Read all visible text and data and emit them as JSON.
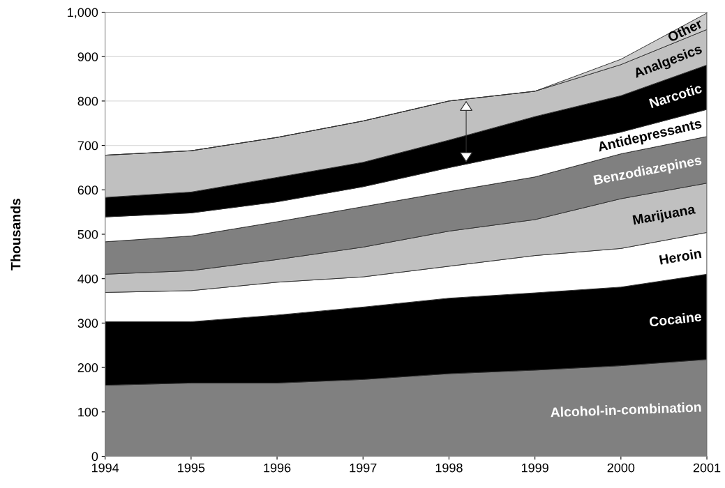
{
  "chart_data": {
    "type": "area",
    "stacked": true,
    "ylabel": "Thousands",
    "x": [
      "1994",
      "1995",
      "1996",
      "1997",
      "1998",
      "1999",
      "2000",
      "2001"
    ],
    "xlim": [
      "1994",
      "2001"
    ],
    "xticks": [
      "1994",
      "1995",
      "1996",
      "1997",
      "1998",
      "1999",
      "2000",
      "2001"
    ],
    "ylim": [
      0,
      1000
    ],
    "yticks": [
      0,
      100,
      200,
      300,
      400,
      500,
      600,
      700,
      800,
      900,
      {
        "value": 1000,
        "label": "1,000"
      }
    ],
    "grid": "y",
    "legend": false,
    "series": [
      {
        "name": "Alcohol-in-combination",
        "color": "#808080",
        "values": [
          160,
          165,
          165,
          173,
          186,
          194,
          204,
          218
        ]
      },
      {
        "name": "Cocaine",
        "color": "#000000",
        "values": [
          143,
          138,
          153,
          163,
          170,
          174,
          177,
          192
        ]
      },
      {
        "name": "Heroin",
        "color": "#ffffff",
        "values": [
          66,
          70,
          74,
          68,
          72,
          84,
          87,
          94
        ]
      },
      {
        "name": "Marijuana",
        "color": "#c0c0c0",
        "values": [
          41,
          45,
          51,
          67,
          79,
          81,
          112,
          111
        ]
      },
      {
        "name": "Benzodiazepines",
        "color": "#808080",
        "values": [
          73,
          78,
          85,
          91,
          89,
          96,
          101,
          105
        ]
      },
      {
        "name": "Antidepressants",
        "color": "#ffffff",
        "values": [
          56,
          52,
          45,
          45,
          54,
          61,
          49,
          61
        ]
      },
      {
        "name": "Narcotic",
        "color": "#000000",
        "values": [
          44,
          47,
          55,
          55,
          62,
          75,
          82,
          100
        ]
      },
      {
        "name": "Analgesics",
        "color": "#c0c0c0",
        "values": [
          95,
          93,
          90,
          93,
          88,
          57,
          70,
          80
        ]
      },
      {
        "name": "Other",
        "color": "#cacaca",
        "values": [
          0,
          0,
          0,
          0,
          0,
          0,
          12,
          37
        ]
      }
    ]
  }
}
